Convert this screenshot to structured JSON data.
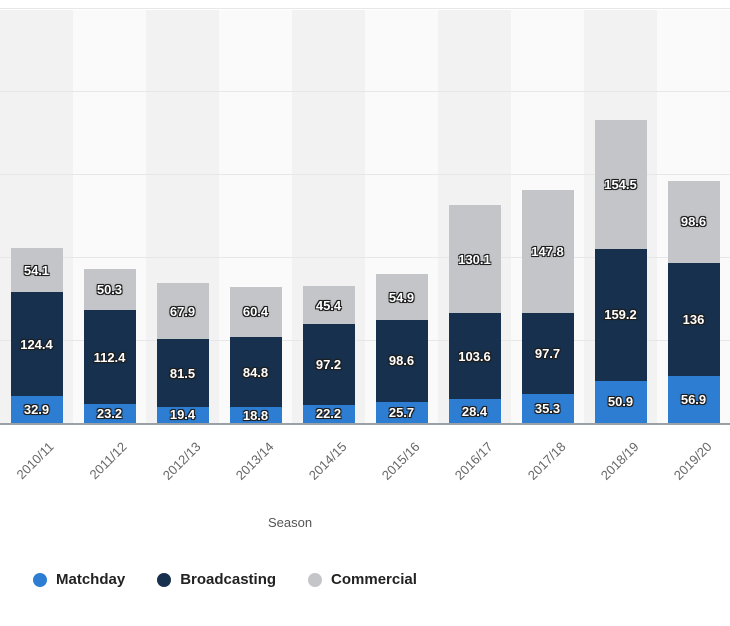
{
  "chart_data": {
    "type": "bar",
    "stacked": true,
    "title": "",
    "xlabel": "Season",
    "ylabel": "",
    "ylim": [
      0,
      500
    ],
    "grid": true,
    "legend_position": "bottom",
    "categories": [
      "2010/11",
      "2011/12",
      "2012/13",
      "2013/14",
      "2014/15",
      "2015/16",
      "2016/17",
      "2017/18",
      "2018/19",
      "2019/20"
    ],
    "series": [
      {
        "name": "Matchday",
        "color": "#2d7dd2",
        "values": [
          32.9,
          23.2,
          19.4,
          18.8,
          22.2,
          25.7,
          28.4,
          35.3,
          50.9,
          56.9
        ]
      },
      {
        "name": "Broadcasting",
        "color": "#17304d",
        "values": [
          124.4,
          112.4,
          81.5,
          84.8,
          97.2,
          98.6,
          103.6,
          97.7,
          159.2,
          136
        ]
      },
      {
        "name": "Commercial",
        "color": "#c3c5c8",
        "values": [
          54.1,
          50.3,
          67.9,
          60.4,
          45.4,
          54.9,
          130.1,
          147.8,
          154.5,
          98.6
        ]
      }
    ],
    "stripe_colors": [
      "#f2f2f3",
      "#fafafa"
    ],
    "axis_color": "#9aa0a5"
  }
}
